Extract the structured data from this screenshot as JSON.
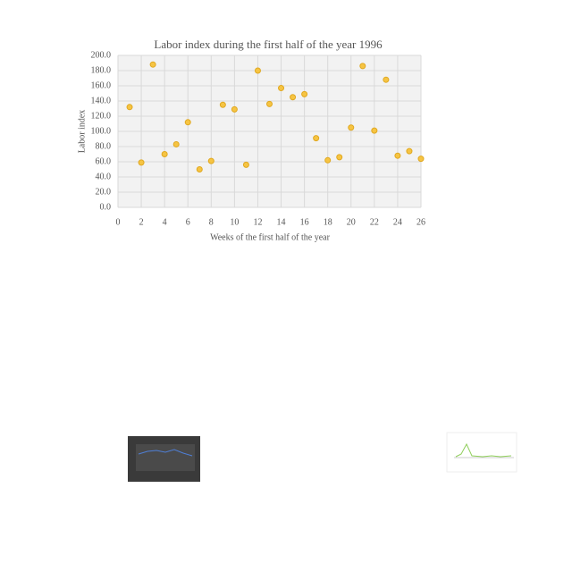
{
  "chart_data": {
    "type": "scatter",
    "title": "Labor index during the first half of the year 1996",
    "x_label": "Weeks of the first half of the year",
    "y_label": "Labor index",
    "x": [
      1,
      2,
      3,
      4,
      5,
      6,
      7,
      8,
      9,
      10,
      11,
      12,
      13,
      14,
      15,
      16,
      17,
      18,
      19,
      20,
      21,
      22,
      23,
      24,
      25,
      26
    ],
    "values": [
      132,
      59,
      188,
      70,
      83,
      112,
      50,
      61,
      135,
      129,
      56,
      180,
      136,
      157,
      145,
      149,
      91,
      62,
      66,
      105,
      186,
      101,
      168,
      68,
      74,
      64
    ],
    "color": "#f6c443",
    "xlim": [
      0,
      26
    ],
    "xticks": [
      0,
      2,
      4,
      6,
      8,
      10,
      12,
      14,
      16,
      18,
      20,
      22,
      24,
      26
    ],
    "ylim": [
      0,
      200
    ],
    "yticks": [
      {
        "value": 0,
        "label": "0.0"
      },
      {
        "value": 20,
        "label": "20.0"
      },
      {
        "value": 40,
        "label": "40.0"
      },
      {
        "value": 60,
        "label": "60.0"
      },
      {
        "value": 80,
        "label": "80.0"
      },
      {
        "value": 100,
        "label": "100.0"
      },
      {
        "value": 120,
        "label": "120.0"
      },
      {
        "value": 140,
        "label": "140.0"
      },
      {
        "value": 160,
        "label": "160.0"
      },
      {
        "value": 180,
        "label": "180.0"
      },
      {
        "value": 200,
        "label": "200.0"
      }
    ],
    "grid": true
  }
}
